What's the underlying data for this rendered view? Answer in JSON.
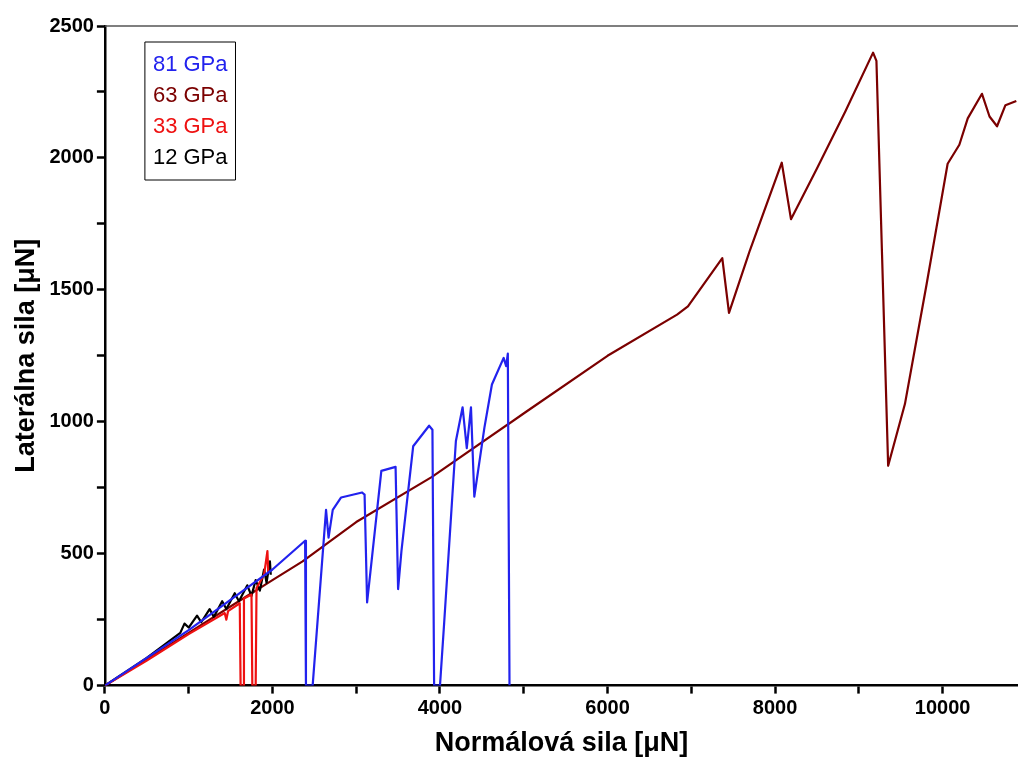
{
  "chart_data": {
    "type": "line",
    "xlabel": "Normálová sila [μN]",
    "ylabel": "Laterálna sila [μN]",
    "legend": "top left",
    "marker": "none",
    "line_style": "solid",
    "xlim": [
      0,
      10900
    ],
    "ylim": [
      0,
      2500
    ],
    "xticks": [
      0,
      {
        "value": 1000,
        "label": null
      },
      2000,
      {
        "value": 3000,
        "label": null
      },
      4000,
      {
        "value": 5000,
        "label": null
      },
      6000,
      {
        "value": 7000,
        "label": null
      },
      8000,
      {
        "value": 9000,
        "label": null
      },
      10000
    ],
    "yticks": [
      0,
      {
        "value": 250,
        "label": null
      },
      500,
      {
        "value": 750,
        "label": null
      },
      1000,
      {
        "value": 1250,
        "label": null
      },
      1500,
      {
        "value": 1750,
        "label": null
      },
      2000,
      {
        "value": 2250,
        "label": null
      },
      2500
    ],
    "series": [
      {
        "name": "81 GPa",
        "color": "#2222ee",
        "x": [
          0,
          1000,
          2000,
          2390,
          2400,
          2480,
          2640,
          2670,
          2720,
          2820,
          3070,
          3100,
          3130,
          3170,
          3300,
          3470,
          3500,
          3540,
          3680,
          3870,
          3910,
          3930,
          4000,
          4050,
          4190,
          4270,
          4320,
          4370,
          4410,
          4530,
          4620,
          4760,
          4790,
          4810,
          4830
        ],
        "values": [
          0,
          210,
          440,
          549,
          0,
          0,
          666,
          561,
          666,
          713,
          732,
          724,
          315,
          432,
          814,
          829,
          366,
          510,
          907,
          985,
          970,
          0,
          0,
          238,
          927,
          1055,
          900,
          1055,
          716,
          977,
          1141,
          1242,
          1211,
          1258,
          0
        ]
      },
      {
        "name": "63 GPa",
        "color": "#7b0000",
        "x": [
          0,
          1000,
          2000,
          2360,
          3000,
          3900,
          5020,
          6000,
          6830,
          6960,
          7370,
          7450,
          7700,
          8080,
          8190,
          8500,
          8840,
          9170,
          9210,
          9350,
          9550,
          9810,
          10060,
          10200,
          10300,
          10470,
          10560,
          10650,
          10750,
          10880
        ],
        "values": [
          0,
          200,
          400,
          471,
          620,
          790,
          1036,
          1250,
          1406,
          1437,
          1620,
          1413,
          1650,
          1982,
          1768,
          1960,
          2177,
          2399,
          2368,
          833,
          1067,
          1523,
          1978,
          2050,
          2150,
          2243,
          2157,
          2120,
          2200,
          2216
        ]
      },
      {
        "name": "33 GPa",
        "color": "#ee1111",
        "x": [
          0,
          500,
          1000,
          1430,
          1450,
          1470,
          1610,
          1620,
          1650,
          1660,
          1750,
          1760,
          1800,
          1810,
          1900,
          1940,
          1950
        ],
        "values": [
          0,
          95,
          195,
          275,
          250,
          282,
          312,
          0,
          0,
          330,
          345,
          0,
          0,
          370,
          420,
          510,
          430
        ]
      },
      {
        "name": "12 GPa",
        "color": "#000000",
        "x": [
          0,
          500,
          900,
          950,
          1000,
          1100,
          1150,
          1250,
          1300,
          1400,
          1450,
          1550,
          1600,
          1700,
          1750,
          1800,
          1850,
          1900,
          1930,
          1970,
          1980
        ],
        "values": [
          0,
          105,
          200,
          235,
          220,
          265,
          240,
          290,
          260,
          320,
          290,
          350,
          320,
          380,
          340,
          400,
          360,
          440,
          390,
          471,
          420
        ]
      }
    ]
  }
}
